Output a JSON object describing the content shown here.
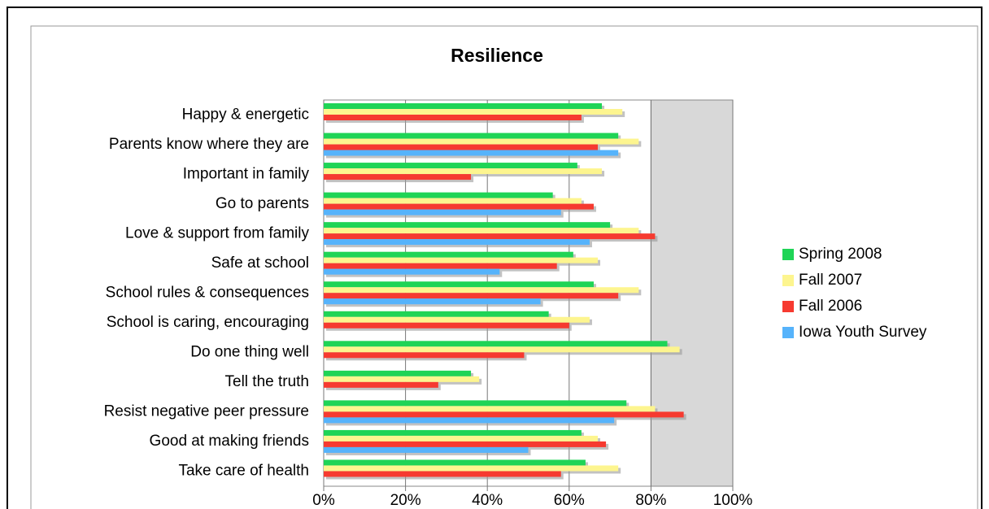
{
  "chart_data": {
    "type": "bar",
    "orientation": "horizontal",
    "title": "Resilience",
    "categories": [
      "Happy & energetic",
      "Parents know where they are",
      "Important in family",
      "Go to parents",
      "Love & support from family",
      "Safe at school",
      "School rules & consequences",
      "School is caring, encouraging",
      "Do one thing well",
      "Tell the truth",
      "Resist negative peer pressure",
      "Good at making friends",
      "Take care of health"
    ],
    "series": [
      {
        "name": "Spring 2008",
        "color": "#1fd456",
        "values": [
          68,
          72,
          62,
          56,
          70,
          61,
          66,
          55,
          84,
          36,
          74,
          63,
          64
        ]
      },
      {
        "name": "Fall 2007",
        "color": "#fdf58f",
        "values": [
          73,
          77,
          68,
          63,
          77,
          67,
          77,
          65,
          87,
          38,
          81,
          67,
          72
        ]
      },
      {
        "name": "Fall 2006",
        "color": "#f63a30",
        "values": [
          63,
          67,
          36,
          66,
          81,
          57,
          72,
          60,
          49,
          28,
          88,
          69,
          58
        ]
      },
      {
        "name": "Iowa Youth Survey",
        "color": "#56b3fb",
        "values": [
          null,
          72,
          null,
          58,
          65,
          43,
          53,
          null,
          null,
          null,
          71,
          50,
          null
        ]
      }
    ],
    "xlim": [
      0,
      100
    ],
    "xticks": [
      {
        "value": 0,
        "label": "0%"
      },
      {
        "value": 20,
        "label": "20%"
      },
      {
        "value": 40,
        "label": "40%"
      },
      {
        "value": 60,
        "label": "60%"
      },
      {
        "value": 80,
        "label": "80%"
      },
      {
        "value": 100,
        "label": "100%"
      }
    ],
    "grid": true,
    "legend": "right"
  }
}
